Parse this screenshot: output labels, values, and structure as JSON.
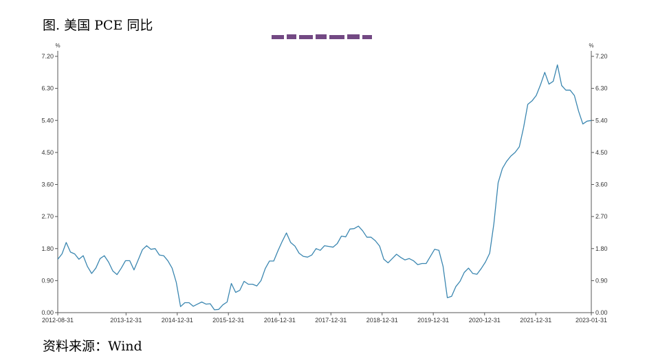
{
  "figure": {
    "title": "图. 美国 PCE 同比",
    "source": "资料来源：Wind"
  },
  "chart_data": {
    "type": "line",
    "title": "",
    "xlabel": "",
    "ylabel": "%",
    "y2label": "%",
    "ylim": [
      0,
      7.2
    ],
    "y_ticks": [
      "0.00",
      "0.90",
      "1.80",
      "2.70",
      "3.60",
      "4.50",
      "5.40",
      "6.30",
      "7.20"
    ],
    "x_ticks": [
      "2012-08-31",
      "2013-12-31",
      "2014-12-31",
      "2015-12-31",
      "2016-12-31",
      "2017-12-31",
      "2018-12-31",
      "2019-12-31",
      "2020-12-31",
      "2021-12-31",
      "2023-01-31"
    ],
    "grid": false,
    "legend": "none",
    "line_color": "#3a86b0",
    "start": "2012-08-31",
    "end": "2023-01-31",
    "series": [
      {
        "values": [
          1.5,
          1.65,
          1.97,
          1.7,
          1.65,
          1.5,
          1.6,
          1.3,
          1.1,
          1.25,
          1.52,
          1.6,
          1.42,
          1.17,
          1.07,
          1.25,
          1.46,
          1.46,
          1.2,
          1.48,
          1.77,
          1.88,
          1.78,
          1.8,
          1.62,
          1.6,
          1.46,
          1.25,
          0.85,
          0.17,
          0.28,
          0.28,
          0.18,
          0.24,
          0.3,
          0.24,
          0.25,
          0.08,
          0.09,
          0.22,
          0.3,
          0.82,
          0.57,
          0.63,
          0.88,
          0.8,
          0.8,
          0.75,
          0.9,
          1.24,
          1.45,
          1.45,
          1.74,
          2.0,
          2.24,
          1.97,
          1.87,
          1.67,
          1.58,
          1.56,
          1.62,
          1.8,
          1.75,
          1.88,
          1.86,
          1.84,
          1.94,
          2.15,
          2.13,
          2.35,
          2.36,
          2.43,
          2.3,
          2.12,
          2.12,
          2.02,
          1.87,
          1.5,
          1.4,
          1.52,
          1.64,
          1.55,
          1.48,
          1.52,
          1.46,
          1.35,
          1.38,
          1.38,
          1.58,
          1.78,
          1.75,
          1.3,
          0.42,
          0.46,
          0.73,
          0.88,
          1.13,
          1.25,
          1.1,
          1.08,
          1.24,
          1.42,
          1.67,
          2.5,
          3.65,
          4.05,
          4.25,
          4.4,
          4.5,
          4.66,
          5.2,
          5.85,
          5.95,
          6.1,
          6.4,
          6.75,
          6.42,
          6.5,
          6.96,
          6.38,
          6.25,
          6.25,
          6.1,
          5.66,
          5.3,
          5.38,
          5.4
        ]
      }
    ]
  }
}
